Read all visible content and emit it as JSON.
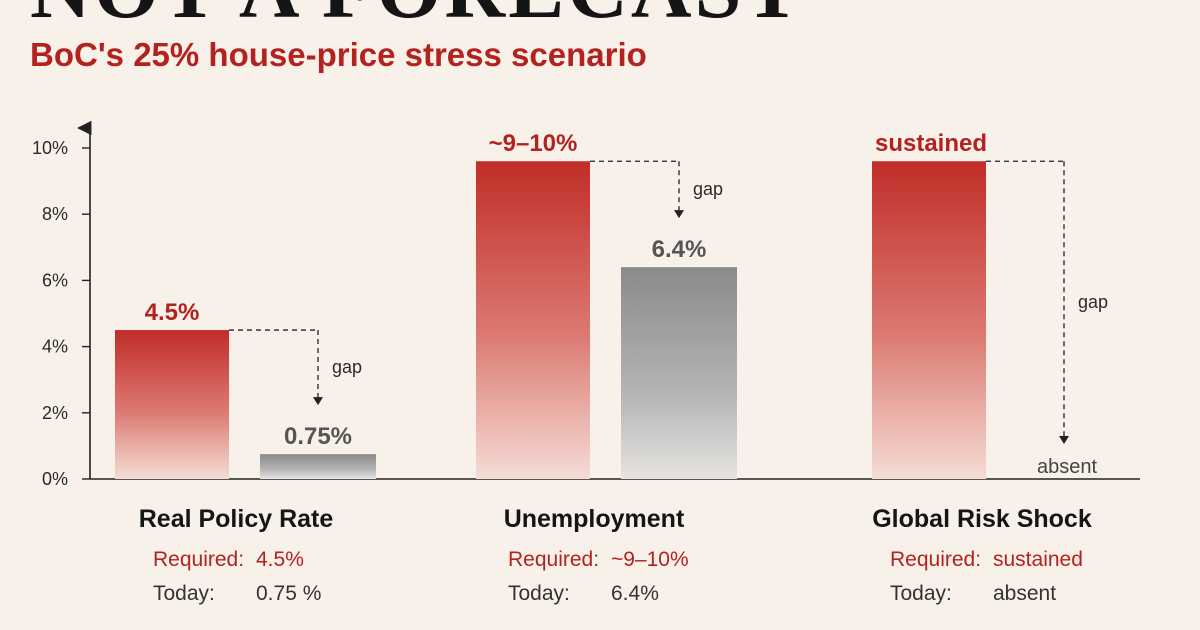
{
  "headline": "NOT A FORECAST",
  "subtitle": "BoC's 25% house-price stress scenario",
  "colors": {
    "required": "#c0302a",
    "today": "#8c8c8c",
    "accent": "#b4221f",
    "background": "#f8f1ea"
  },
  "chart_data": {
    "type": "bar",
    "ylim": [
      0,
      10
    ],
    "y_ticks": [
      {
        "value": 0,
        "label": "0%"
      },
      {
        "value": 2,
        "label": "2%"
      },
      {
        "value": 4,
        "label": "4%"
      },
      {
        "value": 6,
        "label": "6%"
      },
      {
        "value": 8,
        "label": "8%"
      },
      {
        "value": 10,
        "label": "10%"
      }
    ],
    "gap_label": "gap",
    "required_prefix": "Required:",
    "today_prefix": "Today:",
    "grid": false,
    "groups": [
      {
        "category": "Real Policy Rate",
        "required_value": 4.5,
        "required_label": "4.5%",
        "today_value": 0.75,
        "today_label": "0.75%",
        "required_text": "4.5%",
        "today_text": "0.75 %"
      },
      {
        "category": "Unemployment",
        "required_value": 9.6,
        "required_label": "~9–10%",
        "today_value": 6.4,
        "today_label": "6.4%",
        "required_text": "~9–10%",
        "today_text": "6.4%"
      },
      {
        "category": "Global Risk Shock",
        "required_value": 9.6,
        "required_label": "sustained",
        "today_value": 0,
        "today_label": "absent",
        "required_text": "sustained",
        "today_text": "absent"
      }
    ]
  }
}
